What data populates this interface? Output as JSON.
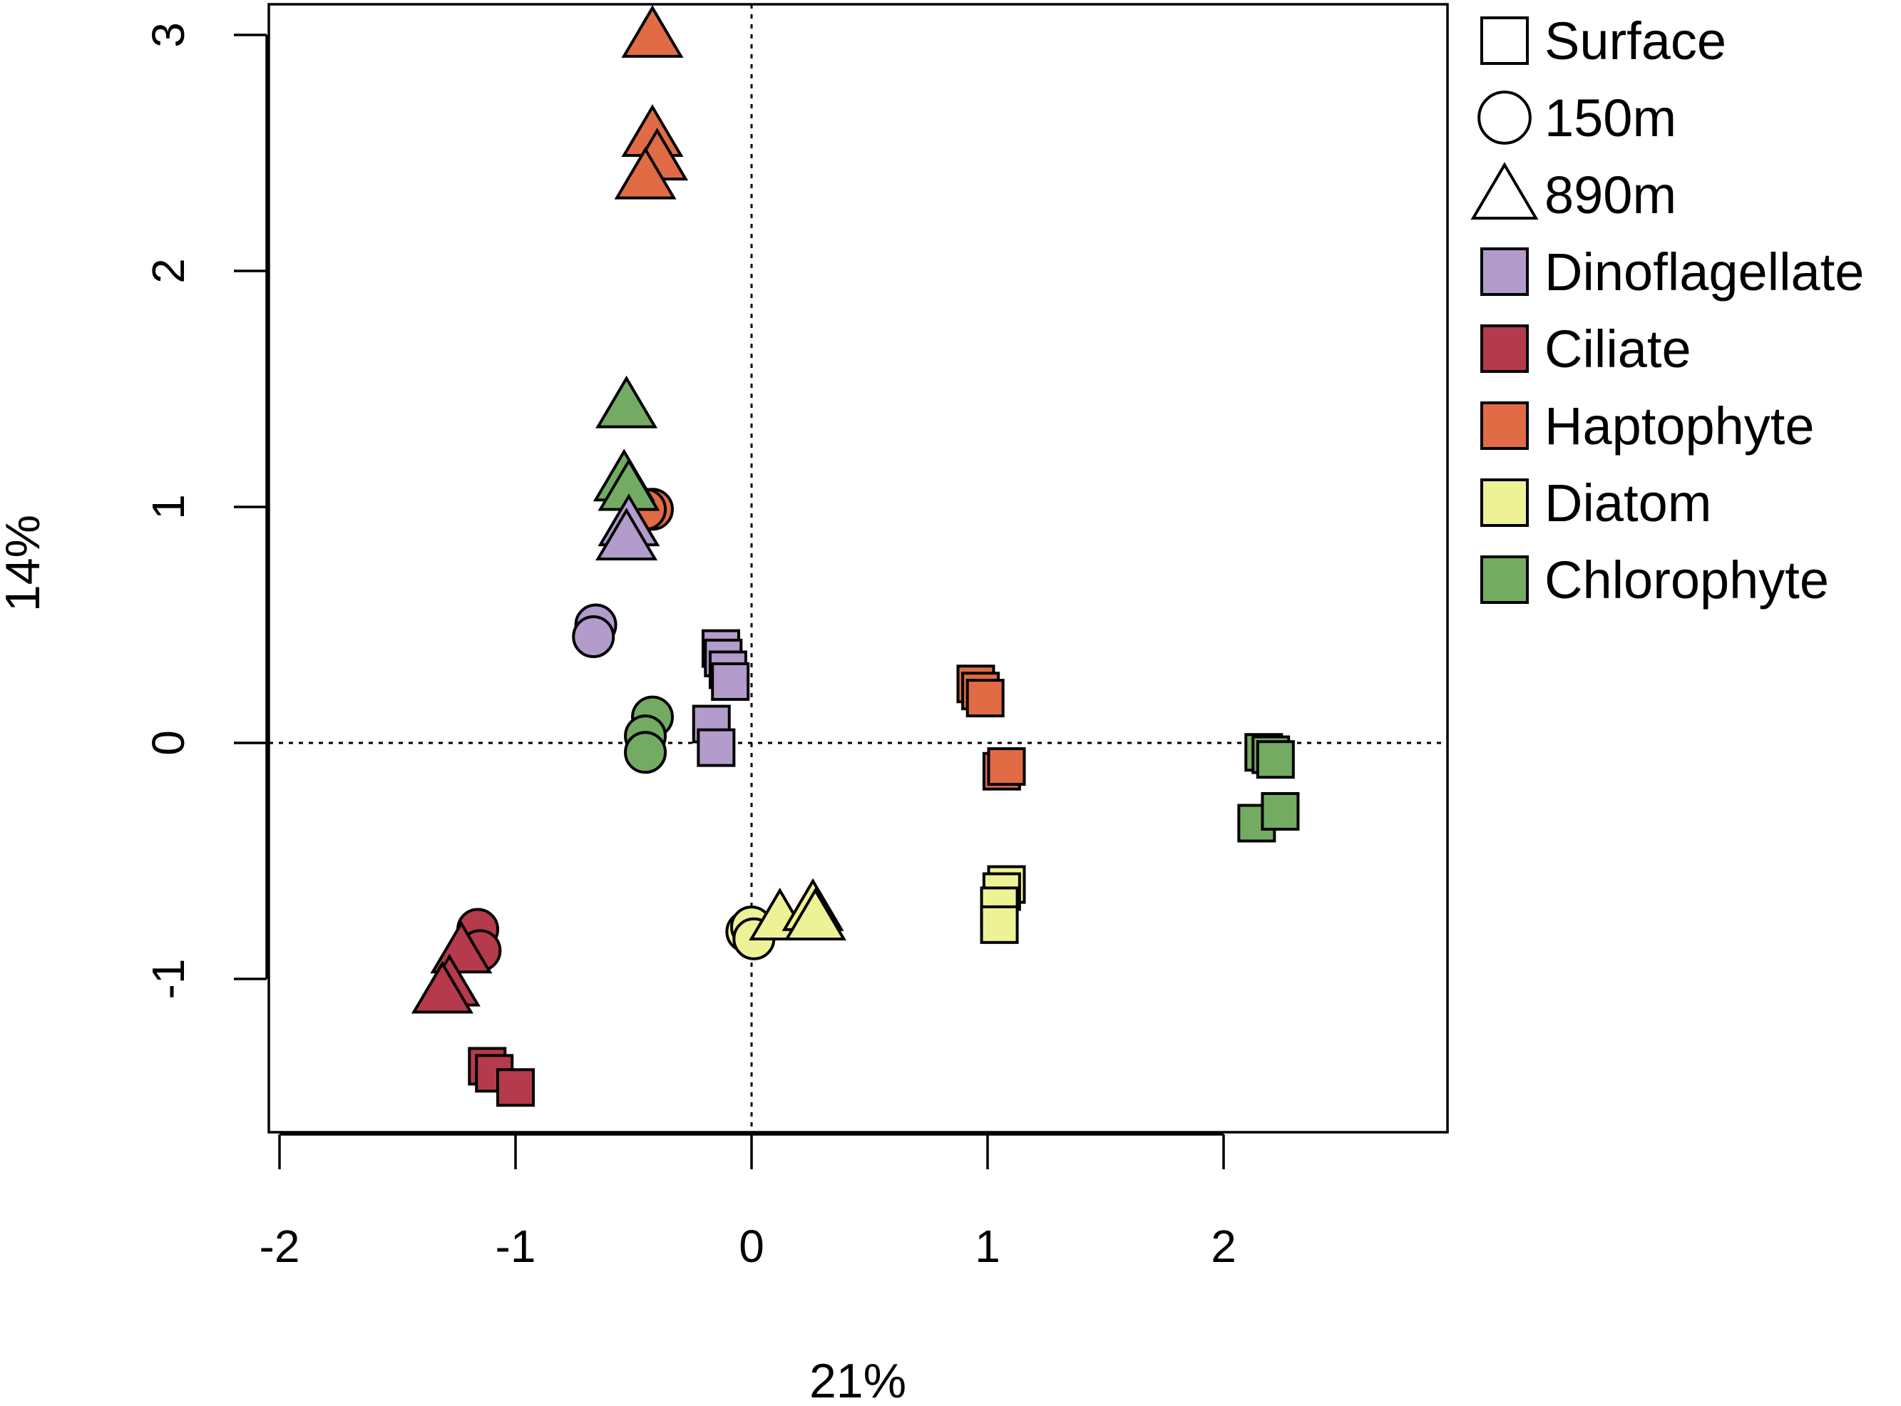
{
  "chart_data": {
    "type": "scatter",
    "xlabel": "21%",
    "ylabel": "14%",
    "xlim": [
      -2,
      2.9
    ],
    "ylim": [
      -1.6,
      3.1
    ],
    "xticks": [
      "-2",
      "-1",
      "0",
      "1",
      "2"
    ],
    "yticks": [
      "-1",
      "0",
      "1",
      "2",
      "3"
    ],
    "reference_lines": {
      "x": 0,
      "y": 0,
      "style": "dotted"
    },
    "grid": false,
    "legend_position": "outside-right",
    "depth_legend": [
      {
        "label": "Surface",
        "shape": "square"
      },
      {
        "label": "150m",
        "shape": "circle"
      },
      {
        "label": "890m",
        "shape": "triangle"
      }
    ],
    "groups": [
      {
        "name": "Dinoflagellate",
        "color": "#b39bcc"
      },
      {
        "name": "Ciliate",
        "color": "#b53a4c"
      },
      {
        "name": "Haptophyte",
        "color": "#e06b45"
      },
      {
        "name": "Diatom",
        "color": "#eef296"
      },
      {
        "name": "Chlorophyte",
        "color": "#74ab62"
      }
    ],
    "points": [
      {
        "group": "Haptophyte",
        "depth": "890m",
        "x": -0.42,
        "y": 3.0
      },
      {
        "group": "Haptophyte",
        "depth": "890m",
        "x": -0.42,
        "y": 2.58
      },
      {
        "group": "Haptophyte",
        "depth": "890m",
        "x": -0.4,
        "y": 2.48
      },
      {
        "group": "Haptophyte",
        "depth": "890m",
        "x": -0.45,
        "y": 2.4
      },
      {
        "group": "Haptophyte",
        "depth": "150m",
        "x": -0.42,
        "y": 0.99
      },
      {
        "group": "Haptophyte",
        "depth": "150m",
        "x": -0.45,
        "y": 0.99
      },
      {
        "group": "Haptophyte",
        "depth": "Surface",
        "x": 0.95,
        "y": 0.25
      },
      {
        "group": "Haptophyte",
        "depth": "Surface",
        "x": 0.97,
        "y": 0.22
      },
      {
        "group": "Haptophyte",
        "depth": "Surface",
        "x": 0.99,
        "y": 0.19
      },
      {
        "group": "Haptophyte",
        "depth": "Surface",
        "x": 1.06,
        "y": -0.12
      },
      {
        "group": "Haptophyte",
        "depth": "Surface",
        "x": 1.08,
        "y": -0.1
      },
      {
        "group": "Chlorophyte",
        "depth": "890m",
        "x": -0.53,
        "y": 1.43
      },
      {
        "group": "Chlorophyte",
        "depth": "890m",
        "x": -0.54,
        "y": 1.12
      },
      {
        "group": "Chlorophyte",
        "depth": "890m",
        "x": -0.52,
        "y": 1.08
      },
      {
        "group": "Chlorophyte",
        "depth": "150m",
        "x": -0.42,
        "y": 0.11
      },
      {
        "group": "Chlorophyte",
        "depth": "150m",
        "x": -0.45,
        "y": 0.03
      },
      {
        "group": "Chlorophyte",
        "depth": "150m",
        "x": -0.45,
        "y": -0.04
      },
      {
        "group": "Chlorophyte",
        "depth": "Surface",
        "x": 2.17,
        "y": -0.04
      },
      {
        "group": "Chlorophyte",
        "depth": "Surface",
        "x": 2.2,
        "y": -0.05
      },
      {
        "group": "Chlorophyte",
        "depth": "Surface",
        "x": 2.22,
        "y": -0.07
      },
      {
        "group": "Chlorophyte",
        "depth": "Surface",
        "x": 2.14,
        "y": -0.34
      },
      {
        "group": "Chlorophyte",
        "depth": "Surface",
        "x": 2.24,
        "y": -0.29
      },
      {
        "group": "Dinoflagellate",
        "depth": "890m",
        "x": -0.52,
        "y": 0.93
      },
      {
        "group": "Dinoflagellate",
        "depth": "890m",
        "x": -0.53,
        "y": 0.87
      },
      {
        "group": "Dinoflagellate",
        "depth": "150m",
        "x": -0.66,
        "y": 0.5
      },
      {
        "group": "Dinoflagellate",
        "depth": "150m",
        "x": -0.67,
        "y": 0.45
      },
      {
        "group": "Dinoflagellate",
        "depth": "Surface",
        "x": -0.13,
        "y": 0.4
      },
      {
        "group": "Dinoflagellate",
        "depth": "Surface",
        "x": -0.12,
        "y": 0.36
      },
      {
        "group": "Dinoflagellate",
        "depth": "Surface",
        "x": -0.1,
        "y": 0.31
      },
      {
        "group": "Dinoflagellate",
        "depth": "Surface",
        "x": -0.09,
        "y": 0.26
      },
      {
        "group": "Dinoflagellate",
        "depth": "Surface",
        "x": -0.17,
        "y": 0.08
      },
      {
        "group": "Dinoflagellate",
        "depth": "Surface",
        "x": -0.15,
        "y": -0.02
      },
      {
        "group": "Ciliate",
        "depth": "150m",
        "x": -1.16,
        "y": -0.79
      },
      {
        "group": "Ciliate",
        "depth": "150m",
        "x": -1.15,
        "y": -0.88
      },
      {
        "group": "Ciliate",
        "depth": "890m",
        "x": -1.23,
        "y": -0.88
      },
      {
        "group": "Ciliate",
        "depth": "890m",
        "x": -1.28,
        "y": -1.02
      },
      {
        "group": "Ciliate",
        "depth": "890m",
        "x": -1.31,
        "y": -1.05
      },
      {
        "group": "Ciliate",
        "depth": "Surface",
        "x": -1.12,
        "y": -1.37
      },
      {
        "group": "Ciliate",
        "depth": "Surface",
        "x": -1.09,
        "y": -1.4
      },
      {
        "group": "Ciliate",
        "depth": "Surface",
        "x": -1.0,
        "y": -1.46
      },
      {
        "group": "Diatom",
        "depth": "150m",
        "x": -0.02,
        "y": -0.8
      },
      {
        "group": "Diatom",
        "depth": "150m",
        "x": 0.0,
        "y": -0.78
      },
      {
        "group": "Diatom",
        "depth": "150m",
        "x": 0.01,
        "y": -0.83
      },
      {
        "group": "Diatom",
        "depth": "890m",
        "x": 0.12,
        "y": -0.74
      },
      {
        "group": "Diatom",
        "depth": "890m",
        "x": 0.26,
        "y": -0.7
      },
      {
        "group": "Diatom",
        "depth": "890m",
        "x": 0.27,
        "y": -0.74
      },
      {
        "group": "Diatom",
        "depth": "Surface",
        "x": 1.08,
        "y": -0.6
      },
      {
        "group": "Diatom",
        "depth": "Surface",
        "x": 1.06,
        "y": -0.63
      },
      {
        "group": "Diatom",
        "depth": "Surface",
        "x": 1.05,
        "y": -0.69
      },
      {
        "group": "Diatom",
        "depth": "Surface",
        "x": 1.05,
        "y": -0.77
      }
    ]
  }
}
